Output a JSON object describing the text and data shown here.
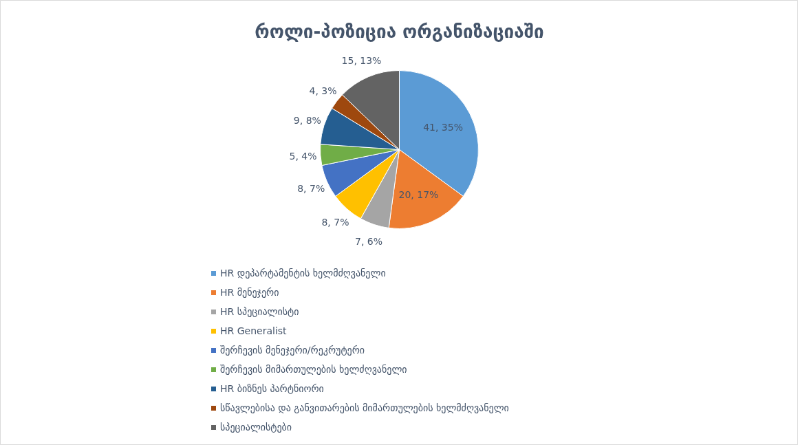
{
  "chart_data": {
    "type": "pie",
    "title": "როლი-პოზიცია ორგანიზაციაში",
    "categories": [
      "HR დეპარტამენტის ხელმძღვანელი",
      "HR მენეჯერი",
      "HR სპეციალისტი",
      "HR Generalist",
      "შერჩევის მენეჯერი/რეკრუტერი",
      "შერჩევის მიმართულების ხელძღვანელი",
      "HR ბიზნეს პარტნიორი",
      "სწავლებისა და განვითარების მიმართულების ხელმძღვანელი",
      "სპეციალისტები"
    ],
    "values": [
      41,
      20,
      7,
      8,
      8,
      5,
      9,
      4,
      15
    ],
    "value_labels": [
      "41, 35%",
      "20, 17%",
      "7, 6%",
      "8, 7%",
      "8, 7%",
      "5, 4%",
      "9, 8%",
      "4, 3%",
      "15, 13%"
    ],
    "colors": [
      "#5b9bd5",
      "#ed7d31",
      "#a5a5a5",
      "#ffc000",
      "#4472c4",
      "#70ad47",
      "#255e91",
      "#9e480e",
      "#636363"
    ],
    "legend": "bottom"
  }
}
